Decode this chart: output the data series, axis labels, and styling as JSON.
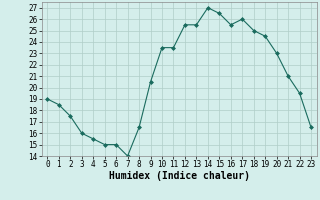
{
  "x": [
    0,
    1,
    2,
    3,
    4,
    5,
    6,
    7,
    8,
    9,
    10,
    11,
    12,
    13,
    14,
    15,
    16,
    17,
    18,
    19,
    20,
    21,
    22,
    23
  ],
  "y": [
    19,
    18.5,
    17.5,
    16,
    15.5,
    15,
    15,
    14,
    16.5,
    20.5,
    23.5,
    23.5,
    25.5,
    25.5,
    27,
    26.5,
    25.5,
    26,
    25,
    24.5,
    23,
    21,
    19.5,
    16.5
  ],
  "line_color": "#1a6b5e",
  "marker_color": "#1a6b5e",
  "bg_color": "#d4eeeb",
  "grid_color": "#b0cdc8",
  "xlabel": "Humidex (Indice chaleur)",
  "xlim": [
    -0.5,
    23.5
  ],
  "ylim": [
    14,
    27.5
  ],
  "yticks": [
    14,
    15,
    16,
    17,
    18,
    19,
    20,
    21,
    22,
    23,
    24,
    25,
    26,
    27
  ],
  "xticks": [
    0,
    1,
    2,
    3,
    4,
    5,
    6,
    7,
    8,
    9,
    10,
    11,
    12,
    13,
    14,
    15,
    16,
    17,
    18,
    19,
    20,
    21,
    22,
    23
  ],
  "tick_fontsize": 5.5,
  "xlabel_fontsize": 7
}
